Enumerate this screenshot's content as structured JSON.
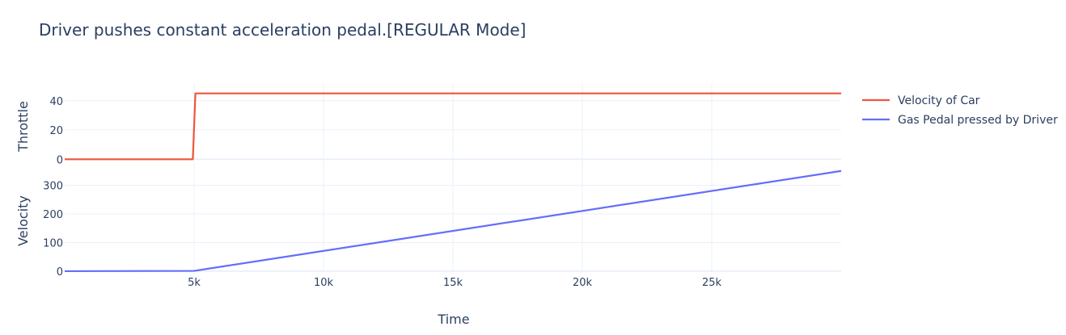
{
  "chart_data": {
    "type": "line",
    "title": "Driver pushes constant acceleration pedal.[REGULAR Mode]",
    "xlabel": "Time",
    "xlim": [
      0,
      30000
    ],
    "x_ticks": [
      5000,
      10000,
      15000,
      20000,
      25000
    ],
    "x_tick_labels": [
      "5k",
      "10k",
      "15k",
      "20k",
      "25k"
    ],
    "subplots": [
      {
        "ylabel": "Throttle",
        "ylim": [
          -7,
          52
        ],
        "y_ticks": [
          0,
          20,
          40
        ],
        "y_tick_labels": [
          "0",
          "20",
          "40"
        ],
        "series": [
          {
            "name": "Velocity of Car",
            "color": "#EF553B",
            "x": [
              0,
              4950,
              5050,
              30000
            ],
            "y": [
              0,
              0,
              45,
              45
            ]
          }
        ]
      },
      {
        "ylabel": "Velocity",
        "ylim": [
          -3,
          355
        ],
        "y_ticks": [
          0,
          100,
          200,
          300
        ],
        "y_tick_labels": [
          "0",
          "100",
          "200",
          "300"
        ],
        "series": [
          {
            "name": "Gas Pedal pressed by Driver",
            "color": "#636EFA",
            "x": [
              0,
              5000,
              30000
            ],
            "y": [
              0,
              1,
              350
            ]
          }
        ]
      }
    ],
    "grid": true,
    "legend_position": "top-right"
  }
}
